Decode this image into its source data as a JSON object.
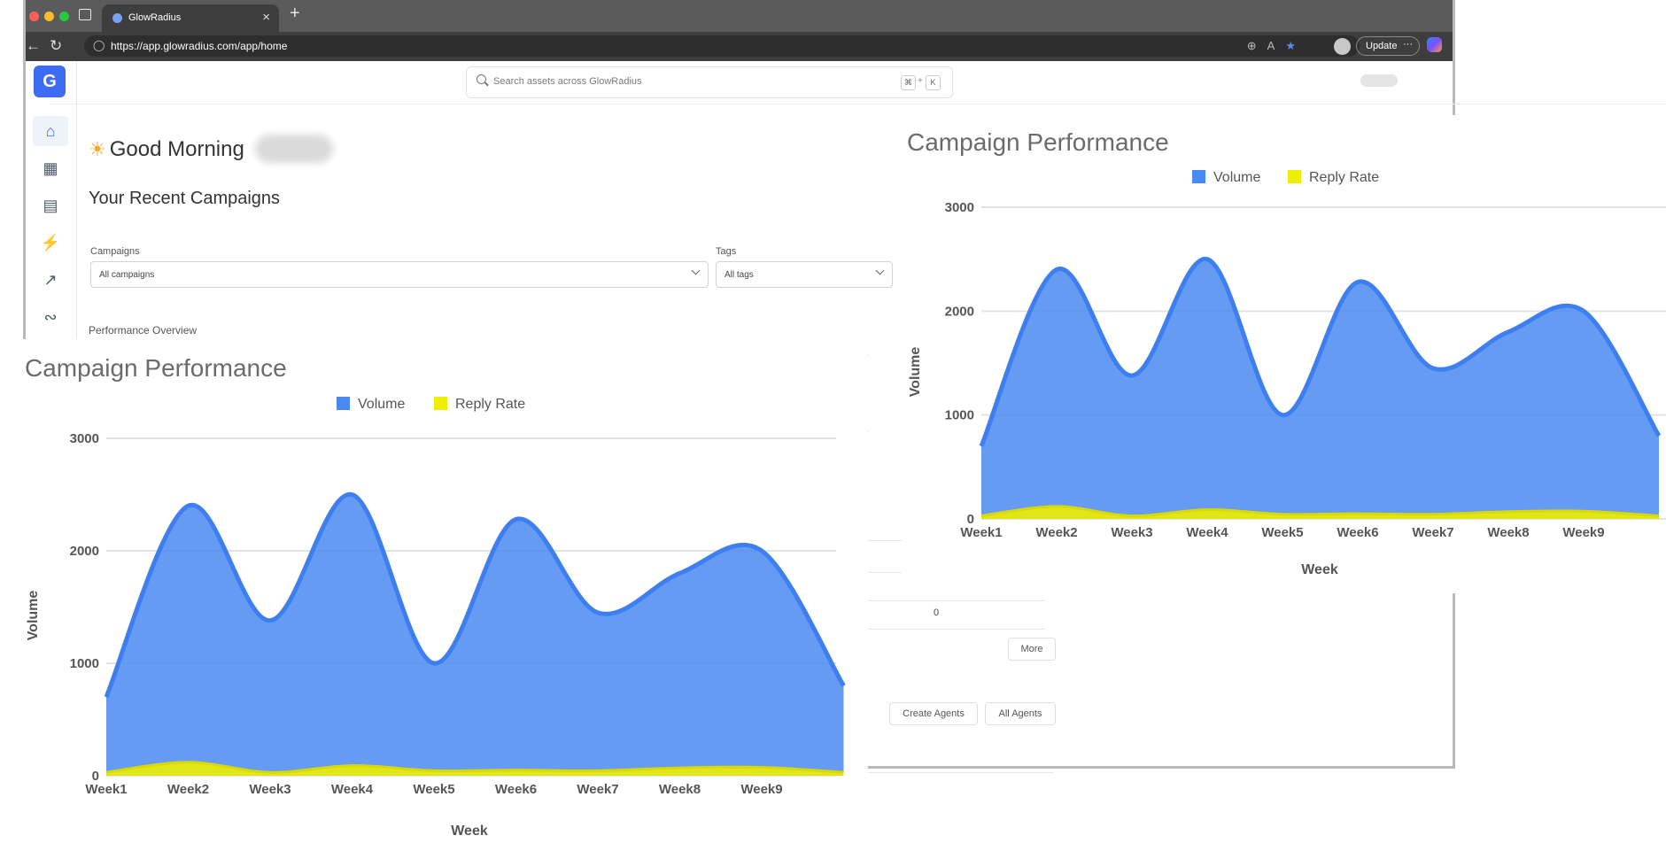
{
  "browser": {
    "tab_title": "GlowRadius",
    "tab_close": "×",
    "new_tab": "+",
    "url": "https://app.glowradius.com/app/home",
    "update_label": "Update",
    "menu_dots": "···"
  },
  "app": {
    "logo": "G",
    "search_placeholder": "Search assets across GlowRadius",
    "shortcut_key1": "⌘",
    "shortcut_plus": "+",
    "shortcut_key2": "K",
    "sidebar_icons": [
      "home-icon",
      "table-icon",
      "document-icon",
      "bolt-icon",
      "analytics-icon",
      "integrations-icon"
    ],
    "greeting": "Good Morning",
    "recent_title": "Your Recent Campaigns",
    "campaigns_label": "Campaigns",
    "campaigns_value": "All campaigns",
    "tags_label": "Tags",
    "tags_value": "All tags",
    "performance_overview": "Performance Overview",
    "table_value": "0",
    "more_button": "More",
    "create_agents_button": "Create Agents",
    "all_agents_button": "All Agents"
  },
  "colors": {
    "accent": "#3b6cf2",
    "volume": "#4a8af0",
    "reply_rate": "#eeee00"
  },
  "chart_data": [
    {
      "type": "area",
      "title": "Campaign Performance",
      "xlabel": "Week",
      "ylabel": "Volume",
      "ylim": [
        0,
        3000
      ],
      "yticks": [
        "0",
        "1000",
        "2000",
        "3000"
      ],
      "categories": [
        "Week1",
        "Week2",
        "Week3",
        "Week4",
        "Week5",
        "Week6",
        "Week7",
        "Week8",
        "Week9"
      ],
      "x_extended_end": 10,
      "series": [
        {
          "name": "Volume",
          "values": [
            700,
            2400,
            1380,
            2500,
            1000,
            2280,
            1450,
            1800,
            2000
          ],
          "end_value": 800
        },
        {
          "name": "Reply Rate",
          "values": [
            30,
            120,
            30,
            90,
            45,
            50,
            45,
            70,
            75
          ],
          "end_value": 30
        }
      ],
      "legend": "top-center",
      "grid": true
    },
    {
      "type": "area",
      "title": "Campaign Performance",
      "xlabel": "Week",
      "ylabel": "Volume",
      "ylim": [
        0,
        3000
      ],
      "yticks": [
        "0",
        "1000",
        "2000",
        "3000"
      ],
      "categories": [
        "Week1",
        "Week2",
        "Week3",
        "Week4",
        "Week5",
        "Week6",
        "Week7",
        "Week8",
        "Week9"
      ],
      "x_extended_end": 10,
      "series": [
        {
          "name": "Volume",
          "values": [
            700,
            2400,
            1380,
            2500,
            1000,
            2280,
            1450,
            1800,
            2000
          ],
          "end_value": 800
        },
        {
          "name": "Reply Rate",
          "values": [
            30,
            120,
            30,
            90,
            45,
            50,
            45,
            70,
            75
          ],
          "end_value": 30
        }
      ],
      "legend": "top-center",
      "grid": true
    }
  ]
}
